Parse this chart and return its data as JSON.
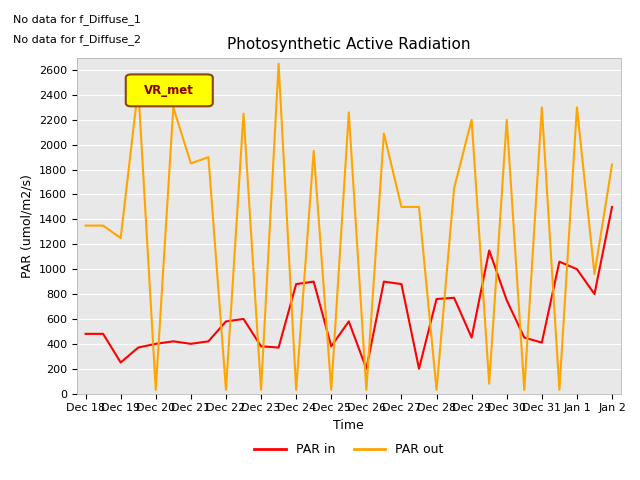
{
  "title": "Photosynthetic Active Radiation",
  "ylabel": "PAR (umol/m2/s)",
  "xlabel": "Time",
  "annotation_lines": [
    "No data for f_Diffuse_1",
    "No data for f_Diffuse_2"
  ],
  "legend_label": "VR_met",
  "ylim": [
    0,
    2700
  ],
  "yticks": [
    0,
    200,
    400,
    600,
    800,
    1000,
    1200,
    1400,
    1600,
    1800,
    2000,
    2200,
    2400,
    2600
  ],
  "xtick_labels": [
    "Dec 18",
    "Dec 19",
    "Dec 20",
    "Dec 21",
    "Dec 22",
    "Dec 23",
    "Dec 24",
    "Dec 25",
    "Dec 26",
    "Dec 27",
    "Dec 28",
    "Dec 29",
    "Dec 30",
    "Dec 31",
    "Jan 1",
    "Jan 2"
  ],
  "par_in_x": [
    0,
    1,
    2,
    3,
    4,
    5,
    6,
    7,
    8,
    9,
    10,
    11,
    12,
    13,
    14,
    15,
    16,
    17,
    18,
    19,
    20,
    21,
    22,
    23,
    24,
    25,
    26,
    27,
    28,
    29,
    30
  ],
  "par_in_y": [
    480,
    480,
    250,
    370,
    400,
    420,
    400,
    420,
    580,
    600,
    380,
    370,
    880,
    900,
    380,
    580,
    200,
    900,
    880,
    200,
    760,
    770,
    450,
    1150,
    750,
    450,
    410,
    1060,
    1000,
    800,
    1500
  ],
  "par_out_x": [
    0,
    1,
    2,
    3,
    4,
    5,
    6,
    7,
    8,
    9,
    10,
    11,
    12,
    13,
    14,
    15,
    16,
    17,
    18,
    19,
    20,
    21,
    22,
    23,
    24,
    25,
    26,
    27,
    28,
    29,
    30
  ],
  "par_out_y": [
    1350,
    1350,
    1250,
    2460,
    30,
    2300,
    1850,
    1900,
    30,
    2250,
    30,
    2650,
    30,
    1950,
    30,
    2260,
    30,
    2090,
    1500,
    1500,
    30,
    1650,
    2200,
    80,
    2200,
    30,
    2300,
    30,
    2300,
    960,
    1840
  ],
  "par_in_color": "#ff0000",
  "par_out_color": "#ffa500",
  "bg_color": "#e8e8e8",
  "grid_color": "#ffffff",
  "legend_box_facecolor": "#ffff00",
  "legend_box_edgecolor": "#8B4513",
  "annotation_color": "#000000",
  "title_fontsize": 11,
  "axis_label_fontsize": 9,
  "tick_fontsize": 8
}
